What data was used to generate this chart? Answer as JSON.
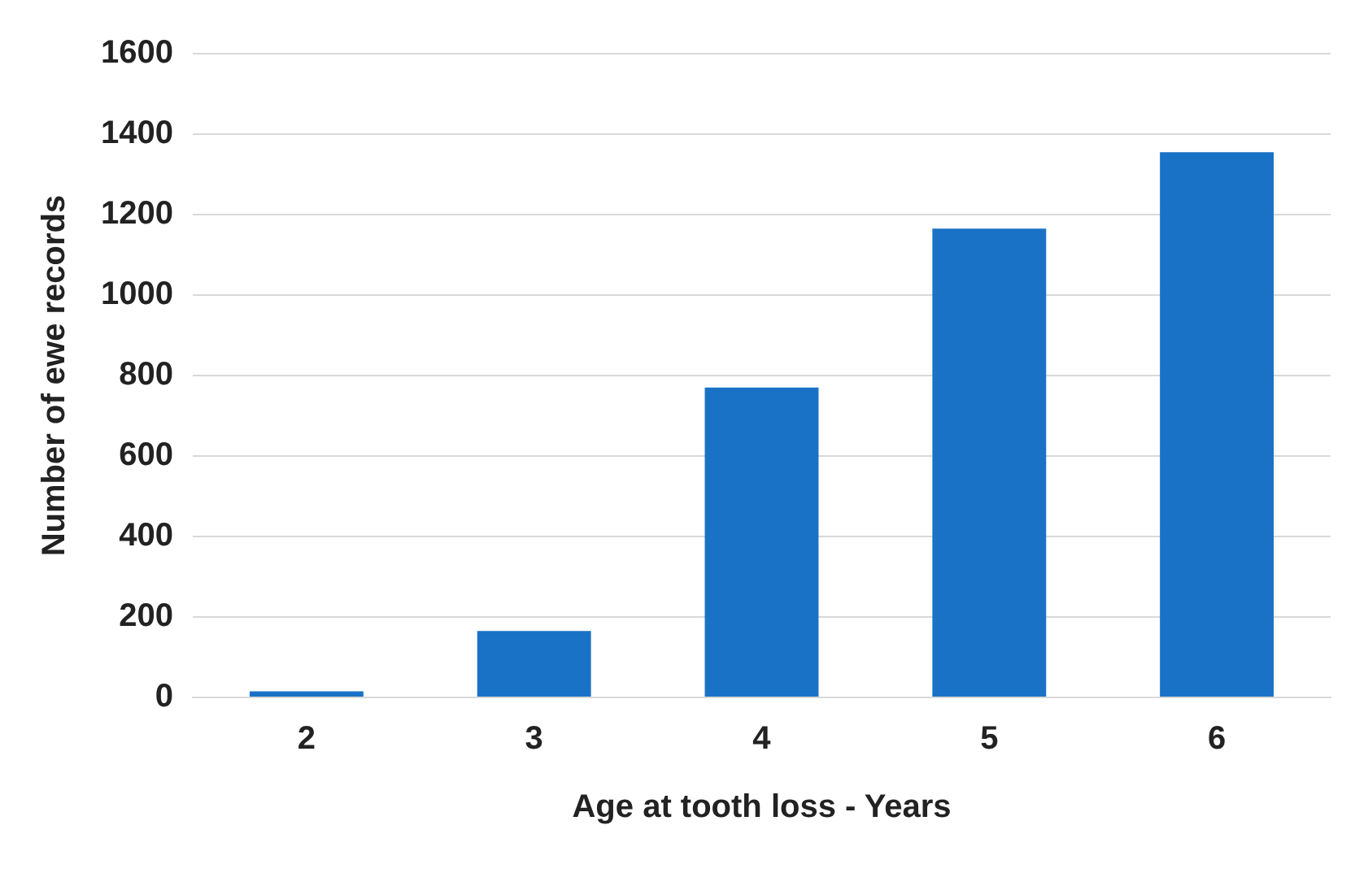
{
  "chart_data": {
    "type": "bar",
    "xlabel": "Age at tooth loss - Years",
    "ylabel": "Number of ewe records",
    "categories": [
      "2",
      "3",
      "4",
      "5",
      "6"
    ],
    "values": [
      15,
      165,
      770,
      1165,
      1355
    ],
    "color": "#1a72c6",
    "ylim": [
      0,
      1600
    ],
    "yticks": [
      0,
      200,
      400,
      600,
      800,
      1000,
      1200,
      1400,
      1600
    ],
    "grid": "y"
  }
}
